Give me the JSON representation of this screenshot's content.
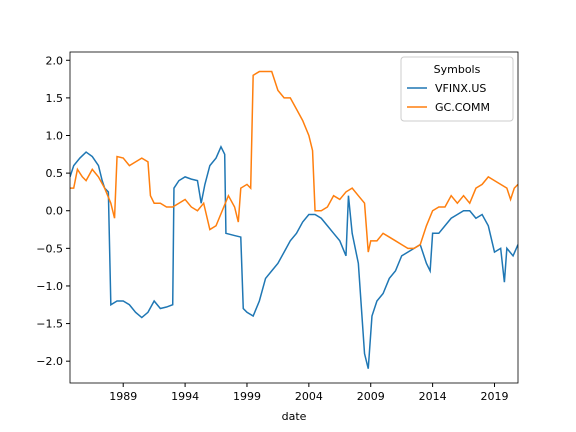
{
  "chart_data": {
    "type": "line",
    "xlabel": "date",
    "xlim": [
      1984.7,
      2020.9
    ],
    "xticks": [
      1989,
      1994,
      1999,
      2004,
      2009,
      2014,
      2019
    ],
    "ylim": [
      -2.29,
      2.11
    ],
    "yticks": [
      {
        "value": -2.0,
        "label": "−2.0"
      },
      {
        "value": -1.5,
        "label": "−1.5"
      },
      {
        "value": -1.0,
        "label": "−1.0"
      },
      {
        "value": -0.5,
        "label": "−0.5"
      },
      {
        "value": 0.0,
        "label": "0.0"
      },
      {
        "value": 0.5,
        "label": "0.5"
      },
      {
        "value": 1.0,
        "label": "1.0"
      },
      {
        "value": 1.5,
        "label": "1.5"
      },
      {
        "value": 2.0,
        "label": "2.0"
      }
    ],
    "legend_title": "Symbols",
    "legend_loc": "upper right",
    "series": [
      {
        "name": "VFINX.US",
        "color": "#1f77b4",
        "x": [
          1984.7,
          1985.0,
          1985.5,
          1986,
          1986.5,
          1987,
          1987.3,
          1987.5,
          1987.8,
          1988,
          1988.5,
          1989,
          1989.5,
          1990,
          1990.5,
          1991,
          1991.5,
          1992,
          1992.5,
          1993,
          1993.1,
          1993.5,
          1994,
          1994.5,
          1995,
          1995.3,
          1995.6,
          1996,
          1996.5,
          1996.9,
          1997.2,
          1997.3,
          1998,
          1998.5,
          1998.7,
          1999,
          1999.5,
          2000,
          2000.5,
          2001,
          2001.5,
          2002,
          2002.5,
          2003,
          2003.5,
          2004,
          2004.5,
          2005,
          2005.5,
          2006,
          2006.5,
          2007,
          2007.2,
          2007.5,
          2008,
          2008.5,
          2008.8,
          2009.1,
          2009.5,
          2010,
          2010.5,
          2011,
          2011.5,
          2012,
          2012.5,
          2013,
          2013.5,
          2013.8,
          2014,
          2014.5,
          2015,
          2015.5,
          2016,
          2016.5,
          2017,
          2017.5,
          2018,
          2018.5,
          2019,
          2019.5,
          2019.8,
          2020,
          2020.5,
          2020.9
        ],
        "values": [
          0.45,
          0.6,
          0.7,
          0.78,
          0.72,
          0.6,
          0.4,
          0.3,
          0.25,
          -1.25,
          -1.2,
          -1.2,
          -1.25,
          -1.35,
          -1.42,
          -1.35,
          -1.2,
          -1.3,
          -1.28,
          -1.25,
          0.3,
          0.4,
          0.45,
          0.42,
          0.4,
          0.1,
          0.35,
          0.6,
          0.7,
          0.85,
          0.75,
          -0.3,
          -0.33,
          -0.35,
          -1.3,
          -1.35,
          -1.4,
          -1.2,
          -0.9,
          -0.8,
          -0.7,
          -0.55,
          -0.4,
          -0.3,
          -0.15,
          -0.05,
          -0.05,
          -0.1,
          -0.2,
          -0.3,
          -0.4,
          -0.6,
          0.2,
          -0.3,
          -0.7,
          -1.9,
          -2.1,
          -1.4,
          -1.2,
          -1.1,
          -0.9,
          -0.8,
          -0.6,
          -0.55,
          -0.5,
          -0.45,
          -0.7,
          -0.8,
          -0.3,
          -0.3,
          -0.2,
          -0.1,
          -0.05,
          0.0,
          0.0,
          -0.1,
          -0.05,
          -0.2,
          -0.55,
          -0.5,
          -0.95,
          -0.5,
          -0.6,
          -0.45
        ]
      },
      {
        "name": "GC.COMM",
        "color": "#ff7f0e",
        "x": [
          1984.7,
          1985,
          1985.3,
          1985.7,
          1986,
          1986.5,
          1987,
          1987.5,
          1988,
          1988.3,
          1988.5,
          1989,
          1989.5,
          1990,
          1990.5,
          1991,
          1991.2,
          1991.5,
          1992,
          1992.5,
          1993,
          1993.5,
          1994,
          1994.5,
          1995,
          1995.5,
          1996,
          1996.5,
          1997,
          1997.5,
          1998,
          1998.3,
          1998.5,
          1999,
          1999.3,
          1999.5,
          2000,
          2000.5,
          2001,
          2001.5,
          2002,
          2002.5,
          2003,
          2003.5,
          2004,
          2004.3,
          2004.5,
          2005,
          2005.5,
          2006,
          2006.5,
          2007,
          2007.5,
          2008,
          2008.5,
          2008.8,
          2009,
          2009.5,
          2010,
          2010.5,
          2011,
          2011.5,
          2012,
          2012.5,
          2013,
          2013.5,
          2014,
          2014.5,
          2015,
          2015.5,
          2016,
          2016.5,
          2017,
          2017.5,
          2018,
          2018.5,
          2019,
          2019.5,
          2020,
          2020.3,
          2020.6,
          2020.9
        ],
        "values": [
          0.3,
          0.3,
          0.55,
          0.45,
          0.4,
          0.55,
          0.45,
          0.3,
          0.1,
          -0.1,
          0.72,
          0.7,
          0.6,
          0.65,
          0.7,
          0.65,
          0.2,
          0.1,
          0.1,
          0.05,
          0.05,
          0.1,
          0.15,
          0.05,
          0.0,
          0.1,
          -0.25,
          -0.2,
          0.0,
          0.2,
          0.05,
          -0.15,
          0.3,
          0.35,
          0.3,
          1.8,
          1.85,
          1.85,
          1.85,
          1.6,
          1.5,
          1.5,
          1.35,
          1.2,
          1.0,
          0.8,
          0.0,
          0.0,
          0.05,
          0.2,
          0.15,
          0.25,
          0.3,
          0.2,
          0.1,
          -0.55,
          -0.4,
          -0.4,
          -0.3,
          -0.35,
          -0.4,
          -0.45,
          -0.5,
          -0.5,
          -0.45,
          -0.2,
          0.0,
          0.05,
          0.05,
          0.2,
          0.1,
          0.2,
          0.1,
          0.3,
          0.35,
          0.45,
          0.4,
          0.35,
          0.3,
          0.15,
          0.3,
          0.35
        ]
      }
    ]
  }
}
